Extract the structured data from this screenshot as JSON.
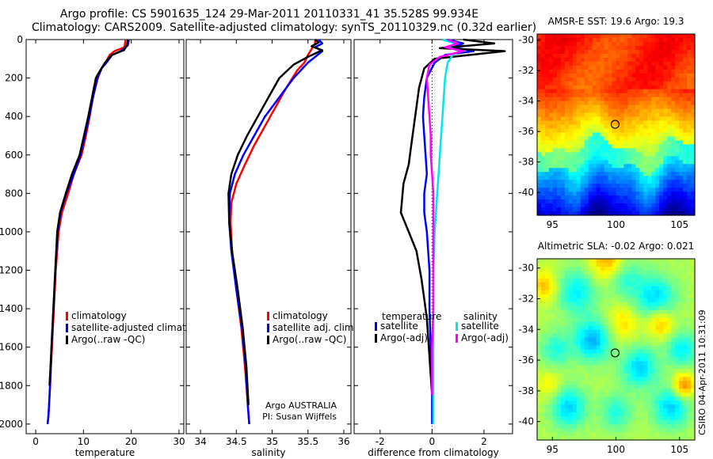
{
  "title": {
    "line1": "Argo profile: CS 5901635_124 29-Mar-2011 20110331_41 35.528S 99.934E",
    "line2": "Climatology: CARS2009. Satellite-adjusted climatology: synTS_20110329.nc (0.32d earlier)"
  },
  "credit": "CSIRO 04-Apr-2011 10:31:09",
  "colors": {
    "red": "#ff0000",
    "blue": "#0000ff",
    "black": "#000000",
    "cyan": "#00e5ee",
    "magenta": "#ff00ff"
  },
  "chart_data": [
    {
      "type": "line",
      "id": "temp",
      "xlabel": "temperature",
      "xlim": [
        -2,
        31
      ],
      "ylim": [
        2050,
        0
      ],
      "xticks": [
        0,
        10,
        20,
        30
      ],
      "yticks": [
        0,
        200,
        400,
        600,
        800,
        1000,
        1200,
        1400,
        1600,
        1800,
        2000
      ],
      "legend": [
        "climatology",
        "satellite-adjusted climatology",
        "Argo(..raw -QC)"
      ],
      "series": [
        {
          "name": "climatology",
          "color": "red",
          "x": [
            18.8,
            18.6,
            16.5,
            15.5,
            14.6,
            13.8,
            13.0,
            12.0,
            11.3,
            10.5,
            9.6,
            8.0,
            6.8,
            5.5,
            4.8,
            4.2,
            3.8,
            3.4,
            3.0,
            2.7,
            2.5
          ],
          "y": [
            0,
            40,
            60,
            80,
            120,
            150,
            200,
            300,
            400,
            500,
            600,
            700,
            800,
            900,
            1000,
            1200,
            1400,
            1600,
            1800,
            1950,
            2000
          ]
        },
        {
          "name": "satellite-adjusted climatology",
          "color": "blue",
          "x": [
            19.5,
            19.3,
            17.8,
            16.0,
            14.8,
            13.8,
            12.9,
            12.0,
            11.2,
            10.3,
            9.4,
            8.0,
            6.4,
            5.2,
            4.6,
            4.1,
            3.7,
            3.3,
            3.0,
            2.7,
            2.5
          ],
          "y": [
            0,
            30,
            60,
            80,
            120,
            150,
            200,
            300,
            400,
            500,
            600,
            700,
            800,
            900,
            1000,
            1200,
            1400,
            1600,
            1800,
            1950,
            2000
          ]
        },
        {
          "name": "Argo(..raw -QC)",
          "color": "black",
          "x": [
            19.3,
            19.1,
            18.5,
            16.0,
            14.5,
            13.5,
            12.6,
            11.8,
            11.0,
            10.1,
            9.2,
            7.6,
            6.3,
            5.1,
            4.5,
            4.1,
            3.7,
            3.3,
            2.9
          ],
          "y": [
            0,
            30,
            55,
            80,
            120,
            160,
            200,
            300,
            400,
            500,
            600,
            700,
            800,
            900,
            1000,
            1200,
            1400,
            1600,
            1800
          ]
        }
      ]
    },
    {
      "type": "line",
      "id": "sal",
      "xlabel": "salinity",
      "xlim": [
        33.8,
        36.1
      ],
      "ylim": [
        2050,
        0
      ],
      "xticks": [
        34,
        34.5,
        35,
        35.5,
        36
      ],
      "legend": [
        "climatology",
        "satellite adj. clim.",
        "Argo(..raw -QC)"
      ],
      "annotation": [
        "Argo AUSTRALIA",
        "PI: Susan Wijffels"
      ],
      "series": [
        {
          "name": "climatology",
          "color": "red",
          "x": [
            35.6,
            35.6,
            35.55,
            35.5,
            35.45,
            35.35,
            35.2,
            35.05,
            34.9,
            34.75,
            34.62,
            34.5,
            34.43,
            34.42,
            34.44,
            34.5,
            34.57,
            34.62,
            34.66,
            34.68
          ],
          "y": [
            0,
            20,
            50,
            80,
            120,
            160,
            250,
            350,
            450,
            550,
            650,
            750,
            850,
            950,
            1100,
            1300,
            1500,
            1700,
            1900,
            2000
          ]
        },
        {
          "name": "satellite adj. clim.",
          "color": "blue",
          "x": [
            35.65,
            35.7,
            35.6,
            35.7,
            35.6,
            35.5,
            35.3,
            35.1,
            34.9,
            34.75,
            34.6,
            34.48,
            34.41,
            34.4,
            34.43,
            34.5,
            34.58,
            34.63,
            34.66,
            34.68
          ],
          "y": [
            0,
            20,
            40,
            60,
            90,
            120,
            200,
            300,
            400,
            500,
            600,
            700,
            800,
            950,
            1100,
            1300,
            1500,
            1700,
            1900,
            2000
          ]
        },
        {
          "name": "Argo(..raw -QC)",
          "color": "black",
          "x": [
            35.6,
            35.65,
            35.55,
            35.7,
            35.5,
            35.3,
            35.1,
            34.95,
            34.8,
            34.65,
            34.52,
            34.43,
            34.39,
            34.4,
            34.44,
            34.52,
            34.59,
            34.64,
            34.67
          ],
          "y": [
            0,
            15,
            35,
            55,
            90,
            130,
            200,
            300,
            400,
            500,
            600,
            700,
            800,
            950,
            1100,
            1300,
            1500,
            1700,
            1900
          ]
        }
      ]
    },
    {
      "type": "line",
      "id": "diff",
      "xlabel": "difference from climatology",
      "xlim": [
        -3,
        3.1
      ],
      "ylim": [
        2050,
        0
      ],
      "xticks": [
        -2,
        0,
        2
      ],
      "legend_group_left": {
        "title": "temperature",
        "items": [
          "satellite",
          "Argo(-adj)"
        ]
      },
      "legend_group_right": {
        "title": "salinity",
        "items": [
          "satellite",
          "Argo(-adj)"
        ]
      },
      "series": [
        {
          "name": "temperature satellite",
          "color": "blue",
          "x": [
            0.6,
            1.2,
            0.8,
            1.6,
            0.5,
            0.1,
            -0.2,
            -0.3,
            -0.35,
            -0.3,
            -0.25,
            -0.2,
            -0.3,
            -0.3,
            -0.2,
            -0.1,
            -0.1,
            -0.05,
            0,
            0
          ],
          "y": [
            0,
            20,
            40,
            60,
            80,
            120,
            200,
            300,
            400,
            500,
            600,
            700,
            800,
            900,
            1000,
            1200,
            1400,
            1600,
            1800,
            2000
          ]
        },
        {
          "name": "temperature Argo(-adj)",
          "color": "black",
          "x": [
            1.2,
            2.4,
            0.3,
            2.8,
            0.1,
            -0.3,
            -0.5,
            -0.6,
            -0.7,
            -0.8,
            -0.9,
            -1.1,
            -1.2,
            -0.9,
            -0.6,
            -0.4,
            -0.2,
            -0.1,
            0
          ],
          "y": [
            0,
            20,
            45,
            60,
            100,
            150,
            250,
            350,
            450,
            550,
            650,
            750,
            900,
            1000,
            1100,
            1250,
            1450,
            1650,
            1850
          ]
        },
        {
          "name": "salinity satellite",
          "color": "cyan",
          "x": [
            0.4,
            0.9,
            0.6,
            1.1,
            0.8,
            0.6,
            0.5,
            0.45,
            0.4,
            0.35,
            0.3,
            0.25,
            0.2,
            0.15,
            0.1,
            0.05,
            0.05,
            0.05,
            0.05,
            0.05
          ],
          "y": [
            0,
            20,
            40,
            60,
            80,
            120,
            200,
            300,
            400,
            500,
            600,
            700,
            800,
            900,
            1000,
            1200,
            1400,
            1600,
            1800,
            2000
          ]
        },
        {
          "name": "salinity Argo(-adj)",
          "color": "magenta",
          "x": [
            0.6,
            1.0,
            0.5,
            1.2,
            0.3,
            -0.1,
            -0.2,
            -0.15,
            -0.1,
            -0.05,
            -0.05,
            0,
            0.05,
            0.05,
            0.05,
            0.05,
            0,
            0
          ],
          "y": [
            0,
            20,
            40,
            60,
            90,
            130,
            200,
            300,
            400,
            500,
            600,
            700,
            800,
            1000,
            1200,
            1400,
            1600,
            1850
          ]
        }
      ]
    },
    {
      "type": "heatmap",
      "id": "sst",
      "title": "AMSR-E SST: 19.6  Argo: 19.3",
      "xlim": [
        93.8,
        106.2
      ],
      "ylim": [
        -41.5,
        -29.6
      ],
      "xticks": [
        95,
        100,
        105
      ],
      "yticks": [
        -30,
        -32,
        -34,
        -36,
        -38,
        -40
      ],
      "marker": {
        "x": 99.934,
        "y": -35.528
      }
    },
    {
      "type": "heatmap",
      "id": "sla",
      "title": "Altimetric SLA: -0.02  Argo: 0.021",
      "xlim": [
        93.8,
        106.2
      ],
      "ylim": [
        -41.2,
        -29.4
      ],
      "xticks": [
        95,
        100,
        105
      ],
      "yticks": [
        -30,
        -32,
        -34,
        -36,
        -38,
        -40
      ],
      "marker": {
        "x": 99.934,
        "y": -35.528
      }
    }
  ]
}
